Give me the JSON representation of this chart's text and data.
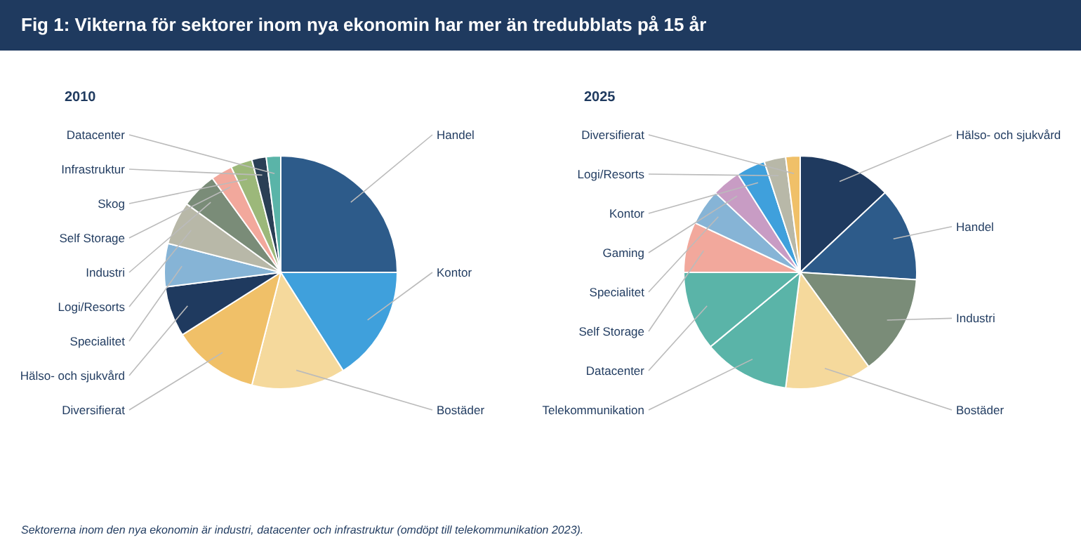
{
  "chart_data": [
    {
      "type": "other",
      "title": "Fig 1: Vikterna för sektorer inom nya ekonomin har mer än tredubblats på 15 år",
      "annotations": [
        "Sektorerna inom den nya ekonomin är industri, datacenter och infrastruktur (omdöpt till telekommunikation 2023)."
      ]
    },
    {
      "type": "pie",
      "title": "2010",
      "categories": [
        "Handel",
        "Kontor",
        "Bostäder",
        "Diversifierat",
        "Hälso- och sjukvård",
        "Specialitet",
        "Logi/Resorts",
        "Industri",
        "Self Storage",
        "Skog",
        "Infrastruktur",
        "Datacenter"
      ],
      "values": [
        25,
        16,
        13,
        12,
        7,
        6,
        6,
        5,
        3,
        3,
        2,
        2
      ],
      "colors": [
        "#2d5b8a",
        "#3fa0dc",
        "#f5d99c",
        "#f0c068",
        "#1f3a5f",
        "#86b4d6",
        "#b8b8a8",
        "#7a8c78",
        "#f2a89c",
        "#9cb87a",
        "#2a3f55",
        "#5ab4a8"
      ]
    },
    {
      "type": "pie",
      "title": "2025",
      "categories": [
        "Hälso- och sjukvård",
        "Handel",
        "Industri",
        "Bostäder",
        "Telekommunikation",
        "Datacenter",
        "Self Storage",
        "Specialitet",
        "Gaming",
        "Kontor",
        "Logi/Resorts",
        "Diversifierat"
      ],
      "values": [
        13,
        13,
        14,
        12,
        12,
        11,
        7,
        5,
        4,
        4,
        3,
        2
      ],
      "colors": [
        "#1f3a5f",
        "#2d5b8a",
        "#7a8c78",
        "#f5d99c",
        "#5ab4a8",
        "#5ab4a8",
        "#f2a89c",
        "#86b4d6",
        "#c89cc4",
        "#3fa0dc",
        "#b8b8a8",
        "#f0c068"
      ]
    }
  ]
}
